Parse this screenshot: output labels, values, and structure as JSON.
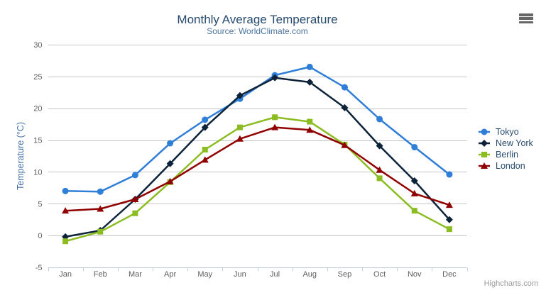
{
  "chart_data": {
    "type": "line",
    "title": "Monthly Average Temperature",
    "subtitle": "Source: WorldClimate.com",
    "categories": [
      "Jan",
      "Feb",
      "Mar",
      "Apr",
      "May",
      "Jun",
      "Jul",
      "Aug",
      "Sep",
      "Oct",
      "Nov",
      "Dec"
    ],
    "xlabel": "",
    "ylabel": "Temperature (°C)",
    "ylim": [
      -5,
      30
    ],
    "y_tick_interval": 5,
    "y_ticks": [
      -5,
      0,
      5,
      10,
      15,
      20,
      25,
      30
    ],
    "grid": true,
    "legend_position": "right",
    "series": [
      {
        "name": "Tokyo",
        "color": "#2f7ed8",
        "marker": "circle",
        "values": [
          7.0,
          6.9,
          9.5,
          14.5,
          18.2,
          21.5,
          25.2,
          26.5,
          23.3,
          18.3,
          13.9,
          9.6
        ]
      },
      {
        "name": "New York",
        "color": "#0d233a",
        "marker": "diamond",
        "values": [
          -0.2,
          0.8,
          5.7,
          11.3,
          17.0,
          22.0,
          24.8,
          24.1,
          20.1,
          14.1,
          8.6,
          2.5
        ]
      },
      {
        "name": "Berlin",
        "color": "#8bbc21",
        "marker": "square",
        "values": [
          -0.9,
          0.6,
          3.5,
          8.4,
          13.5,
          17.0,
          18.6,
          17.9,
          14.3,
          9.0,
          3.9,
          1.0
        ]
      },
      {
        "name": "London",
        "color": "#910000",
        "marker": "triangle",
        "values": [
          3.9,
          4.2,
          5.7,
          8.5,
          11.9,
          15.2,
          17.0,
          16.6,
          14.2,
          10.3,
          6.6,
          4.8
        ]
      }
    ],
    "credits": "Highcharts.com"
  },
  "colors": {
    "title": "#274b6d",
    "subtitle": "#4d759e",
    "axis_title": "#4572a7",
    "tick_label": "#606060",
    "gridline": "#c6c6c6",
    "axis_line": "#c0d0e0",
    "legend_text": "#274b6d",
    "credits": "#9a9a9a",
    "menu_icon": "#666666"
  }
}
